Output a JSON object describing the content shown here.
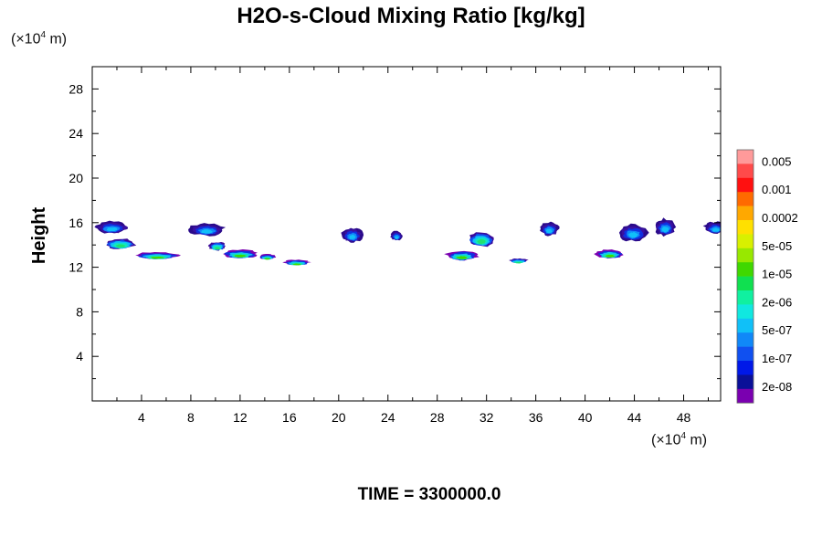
{
  "title": "H2O-s-Cloud Mixing Ratio [kg/kg]",
  "y_unit": {
    "pre": "(×10",
    "exp": "4",
    "post": " m)"
  },
  "x_unit": {
    "pre": "(×10",
    "exp": "4",
    "post": " m)"
  },
  "time_label": "TIME = 3300000.0",
  "chart_data": {
    "type": "heatmap",
    "title": "H2O-s-Cloud Mixing Ratio [kg/kg]",
    "xlabel": "",
    "ylabel": "Height",
    "xlim": [
      0,
      51
    ],
    "ylim": [
      0,
      30
    ],
    "x_ticks": [
      4,
      8,
      12,
      16,
      20,
      24,
      28,
      32,
      36,
      40,
      44,
      48
    ],
    "y_ticks": [
      4,
      8,
      12,
      16,
      20,
      24,
      28
    ],
    "colorbar": {
      "labels": [
        "0.005",
        "0.001",
        "0.0002",
        "5e-05",
        "1e-05",
        "2e-06",
        "5e-07",
        "1e-07",
        "2e-08"
      ],
      "colors": [
        "#ff9a9a",
        "#ff4a4a",
        "#ff1010",
        "#ff6a00",
        "#ffa800",
        "#ffe000",
        "#d8f000",
        "#98e800",
        "#40d800",
        "#10e050",
        "#10f0a0",
        "#10e8e0",
        "#10c0f8",
        "#1088f8",
        "#1050f0",
        "#0018e8",
        "#0a1098",
        "#7a00b0"
      ]
    },
    "clouds": [
      {
        "x": 0.2,
        "y": 15.0,
        "w": 2.8,
        "h": 1.2,
        "level": "5e-07"
      },
      {
        "x": 1.0,
        "y": 13.6,
        "w": 2.6,
        "h": 1.0,
        "level": "2e-06"
      },
      {
        "x": 3.5,
        "y": 12.7,
        "w": 3.6,
        "h": 0.7,
        "level": "1e-05"
      },
      {
        "x": 7.8,
        "y": 14.8,
        "w": 3.0,
        "h": 1.2,
        "level": "5e-07"
      },
      {
        "x": 9.4,
        "y": 13.5,
        "w": 1.5,
        "h": 0.8,
        "level": "2e-06"
      },
      {
        "x": 10.5,
        "y": 12.8,
        "w": 3.0,
        "h": 0.8,
        "level": "1e-05"
      },
      {
        "x": 13.5,
        "y": 12.7,
        "w": 1.4,
        "h": 0.5,
        "level": "1e-05"
      },
      {
        "x": 15.5,
        "y": 12.2,
        "w": 2.2,
        "h": 0.5,
        "level": "1e-05"
      },
      {
        "x": 20.2,
        "y": 14.2,
        "w": 1.8,
        "h": 1.4,
        "level": "5e-07"
      },
      {
        "x": 24.2,
        "y": 14.4,
        "w": 1.0,
        "h": 0.9,
        "level": "5e-07"
      },
      {
        "x": 28.6,
        "y": 12.6,
        "w": 2.8,
        "h": 0.9,
        "level": "1e-05"
      },
      {
        "x": 30.5,
        "y": 13.8,
        "w": 2.2,
        "h": 1.4,
        "level": "2e-06"
      },
      {
        "x": 33.8,
        "y": 12.4,
        "w": 1.6,
        "h": 0.4,
        "level": "2e-06"
      },
      {
        "x": 36.3,
        "y": 14.8,
        "w": 1.6,
        "h": 1.3,
        "level": "5e-07"
      },
      {
        "x": 40.8,
        "y": 12.8,
        "w": 2.4,
        "h": 0.8,
        "level": "1e-05"
      },
      {
        "x": 42.6,
        "y": 14.3,
        "w": 2.6,
        "h": 1.6,
        "level": "5e-07"
      },
      {
        "x": 45.6,
        "y": 14.8,
        "w": 1.8,
        "h": 1.6,
        "level": "5e-07"
      },
      {
        "x": 49.6,
        "y": 15.0,
        "w": 2.0,
        "h": 1.1,
        "level": "5e-07"
      }
    ]
  }
}
